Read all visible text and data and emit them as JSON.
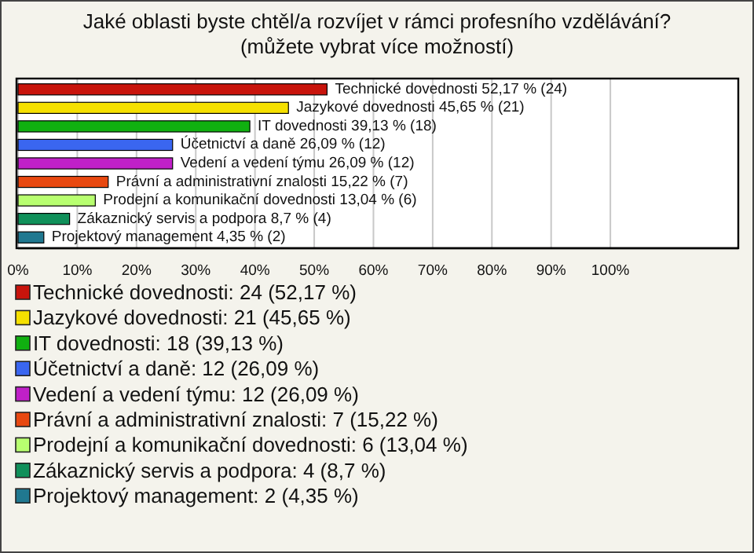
{
  "chart_data": {
    "type": "bar",
    "orientation": "horizontal",
    "title": "Jaké oblasti byste chtěl/a rozvíjet v rámci profesního vzdělávání?",
    "subtitle": "(můžete vybrat více možností)",
    "categories": [
      null,
      null,
      null,
      null,
      null,
      null,
      null,
      null,
      null
    ],
    "values": [
      52.17,
      45.65,
      39.13,
      26.09,
      26.09,
      15.22,
      13.04,
      8.7,
      4.35
    ],
    "colors": [
      "#c8140c",
      "#f5e000",
      "#10b010",
      "#3a66f0",
      "#c020c8",
      "#e84810",
      "#b8ff70",
      "#10905a",
      "#207890"
    ],
    "value_labels": [
      "Technické dovednosti 52,17 % (24)",
      "Jazykové dovednosti 45,65 % (21)",
      "IT dovednosti 39,13 % (18)",
      "Účetnictví a daně 26,09 % (12)",
      "Vedení a vedení týmu 26,09 % (12)",
      "Právní a administrativní znalosti 15,22 % (7)",
      "Prodejní a komunikační dovednosti 13,04 % (6)",
      "Zákaznický servis a podpora 8,7 % (4)",
      "Projektový management 4,35 % (2)"
    ],
    "annotations": [
      "Technické dovednosti: 24 (52,17 %)",
      "Jazykové dovednosti: 21 (45,65 %)",
      "IT dovednosti: 18 (39,13 %)",
      "Účetnictví a daně: 12 (26,09 %)",
      "Vedení a vedení týmu: 12 (26,09 %)",
      "Právní a administrativní znalosti: 7 (15,22 %)",
      "Prodejní a komunikační dovednosti: 6 (13,04 %)",
      "Zákaznický servis a podpora: 4 (8,7 %)",
      "Projektový management: 2 (4,35 %)"
    ],
    "xlim": [
      0,
      121.6
    ],
    "xticks": [
      {
        "value": 0,
        "label": "0%"
      },
      {
        "value": 10,
        "label": "10%"
      },
      {
        "value": 20,
        "label": "20%"
      },
      {
        "value": 30,
        "label": "30%"
      },
      {
        "value": 40,
        "label": "40%"
      },
      {
        "value": 50,
        "label": "50%"
      },
      {
        "value": 60,
        "label": "60%"
      },
      {
        "value": 70,
        "label": "70%"
      },
      {
        "value": 80,
        "label": "80%"
      },
      {
        "value": 90,
        "label": "90%"
      },
      {
        "value": 100,
        "label": "100%"
      }
    ],
    "grid": "x"
  }
}
